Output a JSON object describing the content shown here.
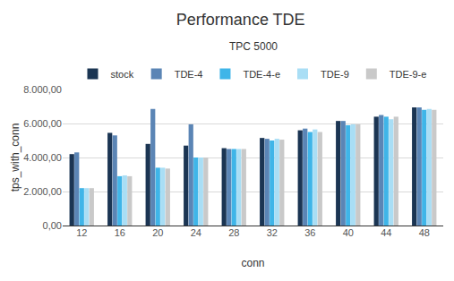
{
  "chart_data": {
    "type": "bar",
    "title": "Performance TDE",
    "subtitle": "TPC 5000",
    "x_label": "conn",
    "y_label": "tps_with_conn",
    "categories": [
      "12",
      "16",
      "20",
      "24",
      "28",
      "32",
      "36",
      "40",
      "44",
      "48"
    ],
    "series": [
      {
        "name": "stock",
        "color": "#1b3553",
        "values": [
          4200,
          5450,
          4800,
          4700,
          4550,
          5150,
          5600,
          6150,
          6400,
          6950
        ]
      },
      {
        "name": "TDE-4",
        "color": "#5b85b5",
        "values": [
          4300,
          5300,
          6850,
          5950,
          4500,
          5100,
          5700,
          6150,
          6500,
          6950
        ]
      },
      {
        "name": "TDE-4-e",
        "color": "#3fb5e8",
        "values": [
          2200,
          2900,
          3400,
          4000,
          4500,
          5000,
          5500,
          5900,
          6400,
          6800
        ]
      },
      {
        "name": "TDE-9",
        "color": "#a9def5",
        "values": [
          2200,
          2950,
          3400,
          4000,
          4500,
          5100,
          5650,
          5950,
          6250,
          6850
        ]
      },
      {
        "name": "TDE-9-e",
        "color": "#c9c9c9",
        "values": [
          2200,
          2900,
          3350,
          4000,
          4500,
          5050,
          5500,
          5950,
          6400,
          6800
        ]
      }
    ],
    "ylim": [
      0,
      8000
    ],
    "yticks": [
      {
        "value": 0,
        "label": "0,00"
      },
      {
        "value": 2000,
        "label": "2.000,00"
      },
      {
        "value": 4000,
        "label": "4.000,00"
      },
      {
        "value": 6000,
        "label": "6.000,00"
      },
      {
        "value": 8000,
        "label": "8.000,00"
      }
    ],
    "grid": true,
    "legend": "top"
  }
}
